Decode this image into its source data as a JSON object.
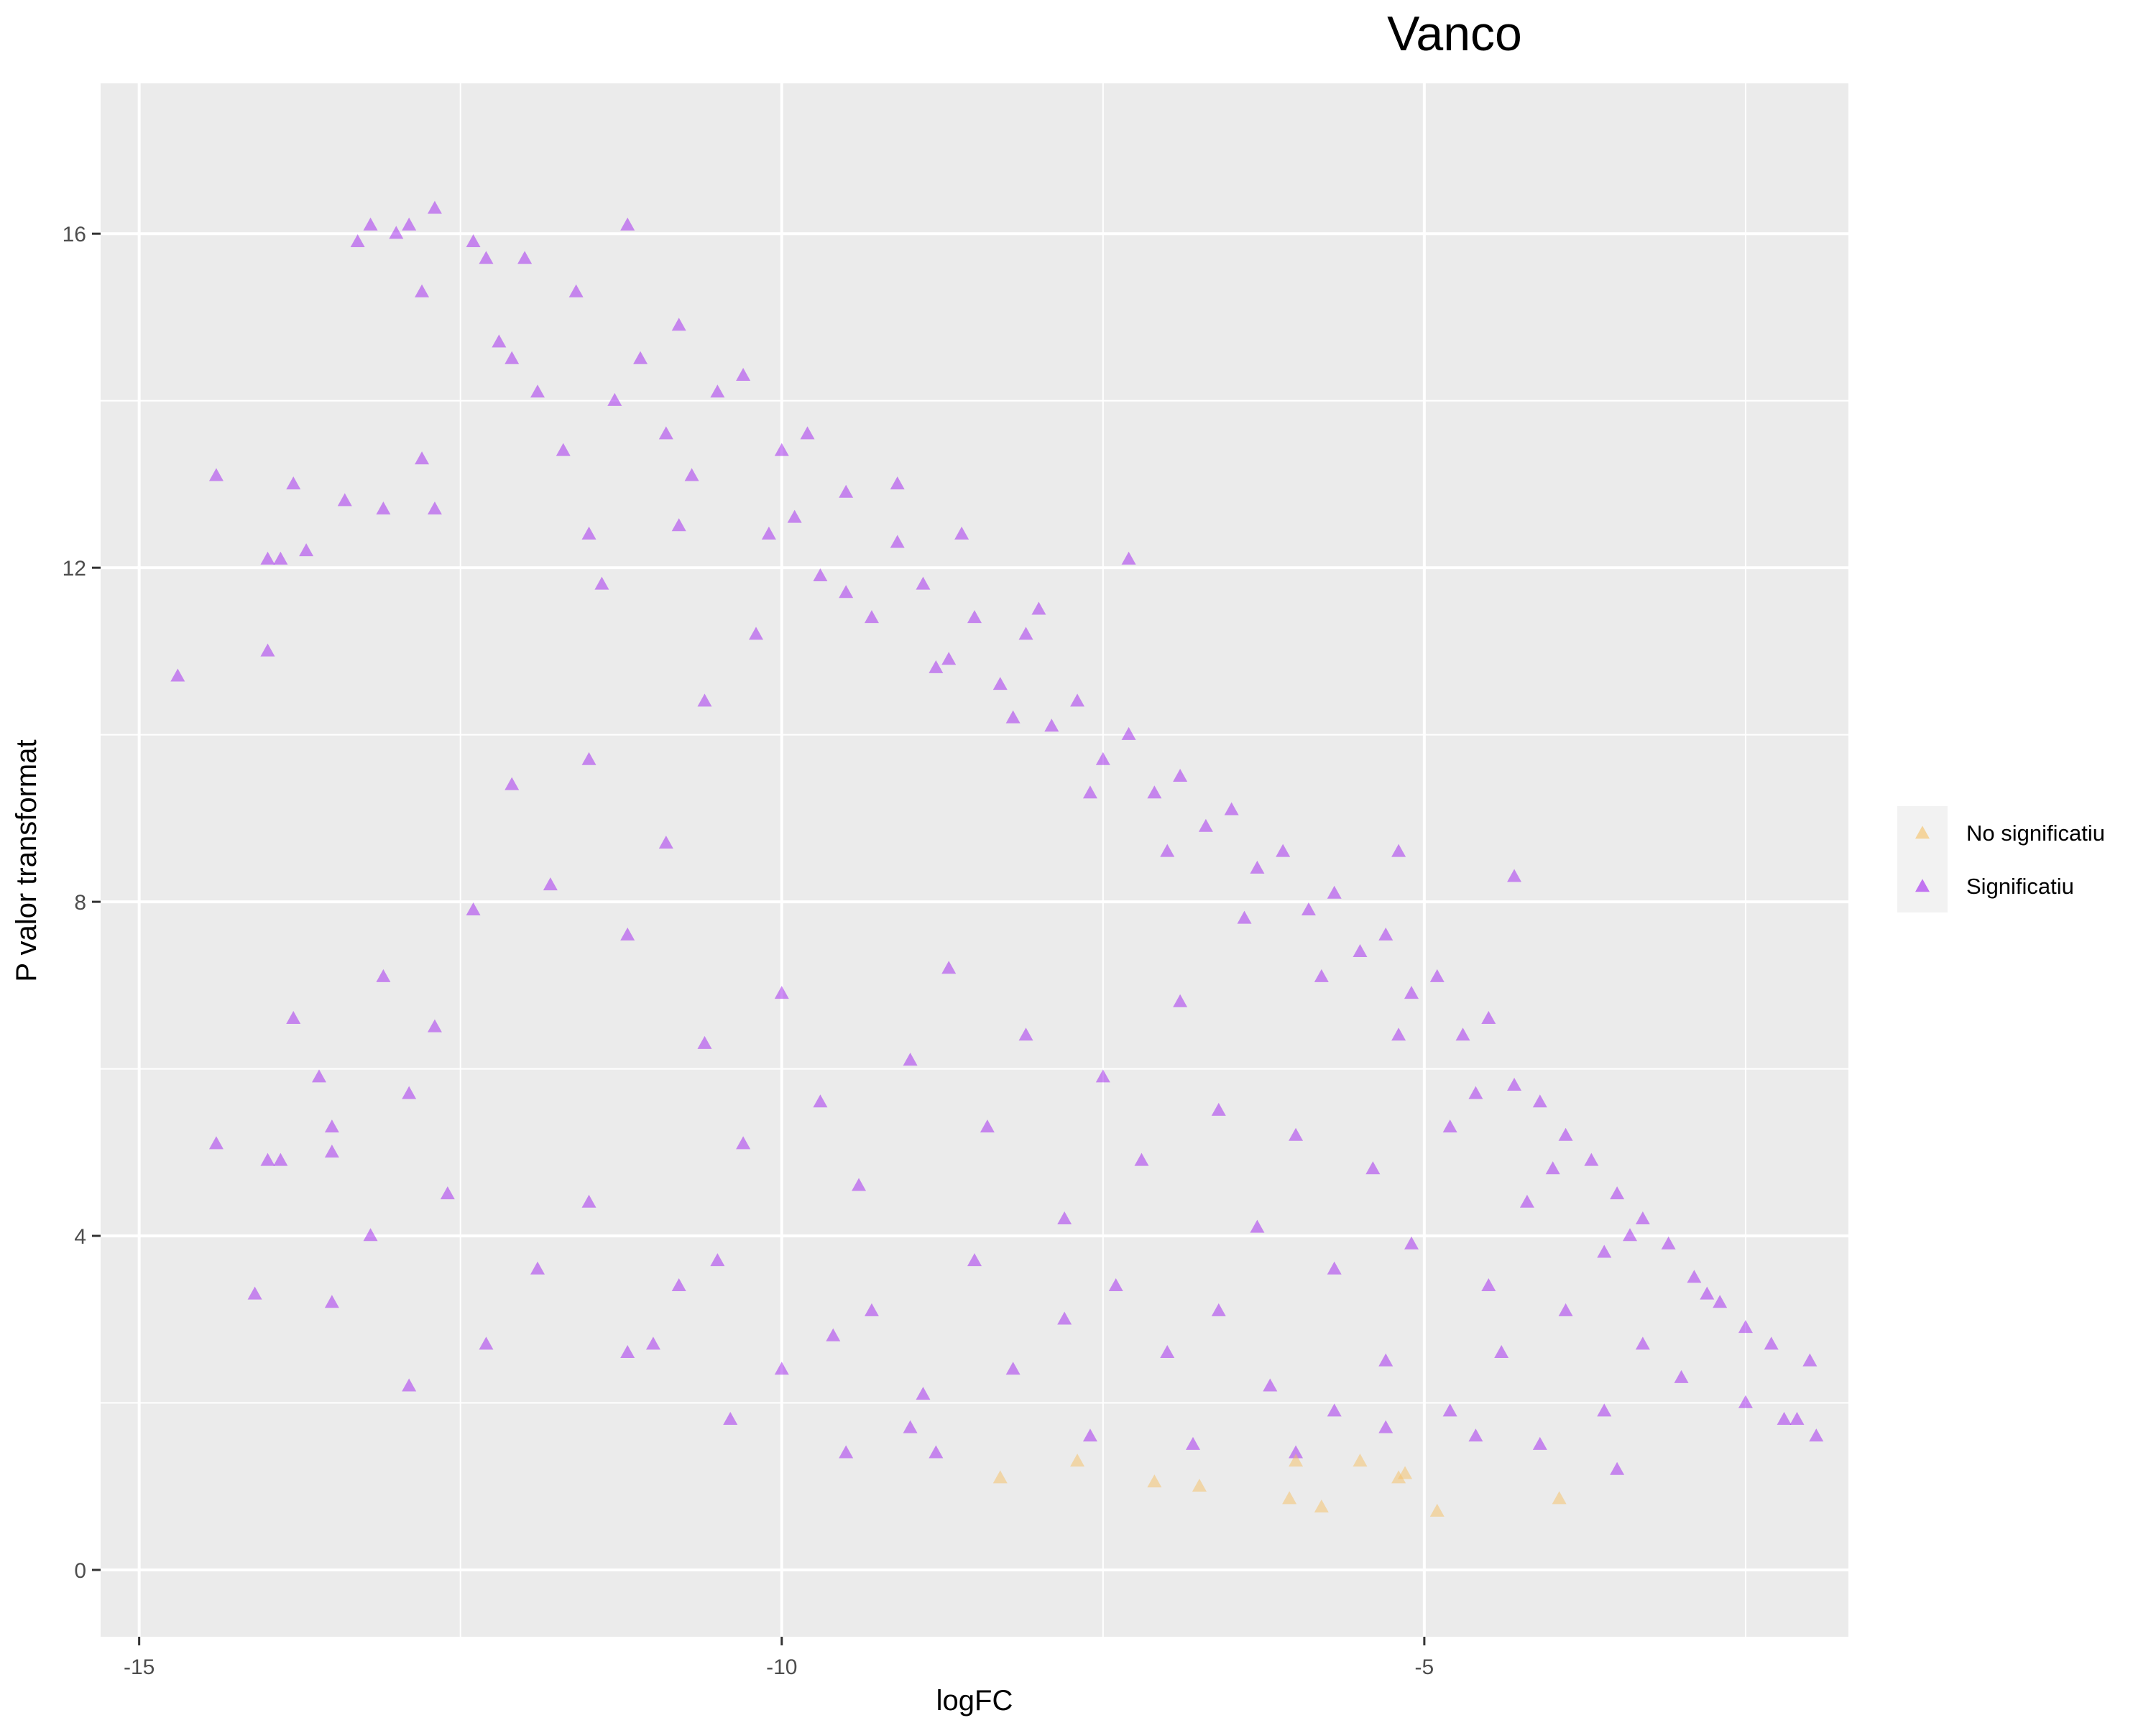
{
  "chart_data": {
    "type": "scatter",
    "title": "Vanco",
    "xlabel": "logFC",
    "ylabel": "P valor transformat",
    "xlim": [
      -15.3,
      -1.7
    ],
    "ylim": [
      -0.8,
      17.8
    ],
    "x_ticks": [
      -15,
      -10,
      -5
    ],
    "x_tick_labels": [
      "-15",
      "-10",
      "-5"
    ],
    "y_ticks": [
      0,
      4,
      8,
      12,
      16
    ],
    "y_tick_labels": [
      "0",
      "4",
      "8",
      "12",
      "16"
    ],
    "grid": true,
    "marker": "triangle",
    "legend": {
      "position": "right",
      "title": ""
    },
    "series": [
      {
        "name": "No significatiu",
        "color": "#F5C063",
        "points": [
          [
            -8.3,
            1.1
          ],
          [
            -7.7,
            1.3
          ],
          [
            -7.1,
            1.05
          ],
          [
            -6.75,
            1.0
          ],
          [
            -6.05,
            0.85
          ],
          [
            -6.0,
            1.3
          ],
          [
            -5.8,
            0.75
          ],
          [
            -5.5,
            1.3
          ],
          [
            -5.2,
            1.1
          ],
          [
            -5.15,
            1.15
          ],
          [
            -4.9,
            0.7
          ],
          [
            -3.95,
            0.85
          ]
        ]
      },
      {
        "name": "Significatiu",
        "color": "#A020F0",
        "points": [
          [
            -14.7,
            10.7
          ],
          [
            -14.4,
            13.1
          ],
          [
            -14.4,
            5.1
          ],
          [
            -14.1,
            3.3
          ],
          [
            -14.0,
            12.1
          ],
          [
            -14.0,
            11.0
          ],
          [
            -14.0,
            4.9
          ],
          [
            -13.9,
            12.1
          ],
          [
            -13.9,
            4.9
          ],
          [
            -13.8,
            13.0
          ],
          [
            -13.8,
            6.6
          ],
          [
            -13.7,
            12.2
          ],
          [
            -13.6,
            5.9
          ],
          [
            -13.5,
            3.2
          ],
          [
            -13.5,
            5.3
          ],
          [
            -13.5,
            5.0
          ],
          [
            -13.4,
            12.8
          ],
          [
            -13.3,
            15.9
          ],
          [
            -13.2,
            16.1
          ],
          [
            -13.1,
            12.7
          ],
          [
            -13.0,
            16.0
          ],
          [
            -12.9,
            16.1
          ],
          [
            -12.8,
            15.3
          ],
          [
            -12.8,
            13.3
          ],
          [
            -12.7,
            16.3
          ],
          [
            -12.7,
            12.7
          ],
          [
            -12.4,
            15.9
          ],
          [
            -12.3,
            15.7
          ],
          [
            -12.1,
            14.5
          ],
          [
            -12.0,
            15.7
          ],
          [
            -11.9,
            14.1
          ],
          [
            -11.7,
            13.4
          ],
          [
            -11.5,
            12.4
          ],
          [
            -11.4,
            11.8
          ],
          [
            -11.2,
            16.1
          ],
          [
            -11.1,
            14.5
          ],
          [
            -10.9,
            13.6
          ],
          [
            -10.8,
            12.5
          ],
          [
            -10.6,
            10.4
          ],
          [
            -10.5,
            14.1
          ],
          [
            -10.2,
            11.2
          ],
          [
            -10.0,
            13.4
          ],
          [
            -9.9,
            12.6
          ],
          [
            -9.7,
            11.9
          ],
          [
            -9.5,
            12.9
          ],
          [
            -9.3,
            11.4
          ],
          [
            -9.1,
            12.3
          ],
          [
            -8.9,
            11.8
          ],
          [
            -8.7,
            10.9
          ],
          [
            -8.5,
            11.4
          ],
          [
            -8.3,
            10.6
          ],
          [
            -8.1,
            11.2
          ],
          [
            -7.9,
            10.1
          ],
          [
            -7.7,
            10.4
          ],
          [
            -7.5,
            9.7
          ],
          [
            -7.3,
            10.0
          ],
          [
            -7.1,
            9.3
          ],
          [
            -6.9,
            9.5
          ],
          [
            -6.7,
            8.9
          ],
          [
            -6.5,
            9.1
          ],
          [
            -6.3,
            8.4
          ],
          [
            -6.1,
            8.6
          ],
          [
            -5.9,
            7.9
          ],
          [
            -5.7,
            8.1
          ],
          [
            -5.5,
            7.4
          ],
          [
            -5.3,
            7.6
          ],
          [
            -5.1,
            6.9
          ],
          [
            -4.9,
            7.1
          ],
          [
            -4.7,
            6.4
          ],
          [
            -4.5,
            6.6
          ],
          [
            -4.3,
            5.8
          ],
          [
            -4.1,
            5.6
          ],
          [
            -3.9,
            5.2
          ],
          [
            -3.7,
            4.9
          ],
          [
            -3.5,
            4.5
          ],
          [
            -3.3,
            4.2
          ],
          [
            -3.1,
            3.9
          ],
          [
            -2.9,
            3.5
          ],
          [
            -2.7,
            3.2
          ],
          [
            -2.5,
            2.9
          ],
          [
            -2.3,
            2.7
          ],
          [
            -2.1,
            1.8
          ],
          [
            -2.0,
            2.5
          ],
          [
            -1.95,
            1.6
          ],
          [
            -2.5,
            2.0
          ],
          [
            -3.0,
            2.3
          ],
          [
            -3.6,
            1.9
          ],
          [
            -4.1,
            1.5
          ],
          [
            -4.4,
            2.6
          ],
          [
            -4.8,
            1.9
          ],
          [
            -5.3,
            2.5
          ],
          [
            -5.7,
            1.9
          ],
          [
            -6.2,
            2.2
          ],
          [
            -6.6,
            3.1
          ],
          [
            -7.0,
            2.6
          ],
          [
            -7.4,
            3.4
          ],
          [
            -7.8,
            3.0
          ],
          [
            -8.2,
            2.4
          ],
          [
            -8.5,
            3.7
          ],
          [
            -8.9,
            2.1
          ],
          [
            -9.3,
            3.1
          ],
          [
            -9.6,
            2.8
          ],
          [
            -10.0,
            2.4
          ],
          [
            -10.4,
            1.8
          ],
          [
            -10.8,
            3.4
          ],
          [
            -11.2,
            2.6
          ],
          [
            -11.5,
            4.4
          ],
          [
            -11.9,
            3.6
          ],
          [
            -12.3,
            2.7
          ],
          [
            -12.6,
            4.5
          ],
          [
            -12.9,
            5.7
          ],
          [
            -13.1,
            7.1
          ],
          [
            -12.7,
            6.5
          ],
          [
            -12.4,
            7.9
          ],
          [
            -12.1,
            9.4
          ],
          [
            -11.8,
            8.2
          ],
          [
            -11.5,
            9.7
          ],
          [
            -11.2,
            7.6
          ],
          [
            -10.9,
            8.7
          ],
          [
            -10.6,
            6.3
          ],
          [
            -10.3,
            5.1
          ],
          [
            -10.0,
            6.9
          ],
          [
            -9.7,
            5.6
          ],
          [
            -9.4,
            4.6
          ],
          [
            -9.0,
            6.1
          ],
          [
            -8.7,
            7.2
          ],
          [
            -8.4,
            5.3
          ],
          [
            -8.1,
            6.4
          ],
          [
            -7.8,
            4.2
          ],
          [
            -7.5,
            5.9
          ],
          [
            -7.2,
            4.9
          ],
          [
            -6.9,
            6.8
          ],
          [
            -6.6,
            5.5
          ],
          [
            -6.3,
            4.1
          ],
          [
            -6.0,
            5.2
          ],
          [
            -5.7,
            3.6
          ],
          [
            -5.4,
            4.8
          ],
          [
            -5.1,
            3.9
          ],
          [
            -4.8,
            5.3
          ],
          [
            -4.5,
            3.4
          ],
          [
            -4.2,
            4.4
          ],
          [
            -3.9,
            3.1
          ],
          [
            -3.6,
            3.8
          ],
          [
            -3.3,
            2.7
          ],
          [
            -12.9,
            2.2
          ],
          [
            -13.2,
            4.0
          ],
          [
            -11.0,
            2.7
          ],
          [
            -10.5,
            3.7
          ],
          [
            -9.0,
            1.7
          ],
          [
            -9.5,
            1.4
          ],
          [
            -8.8,
            1.4
          ],
          [
            -7.6,
            1.6
          ],
          [
            -6.8,
            1.5
          ],
          [
            -6.0,
            1.4
          ],
          [
            -5.3,
            1.7
          ],
          [
            -4.6,
            1.6
          ],
          [
            -3.5,
            1.2
          ],
          [
            -2.2,
            1.8
          ],
          [
            -4.3,
            8.3
          ],
          [
            -5.2,
            8.6
          ],
          [
            -7.3,
            12.1
          ],
          [
            -8.0,
            11.5
          ],
          [
            -8.6,
            12.4
          ],
          [
            -9.1,
            13.0
          ],
          [
            -9.8,
            13.6
          ],
          [
            -10.3,
            14.3
          ],
          [
            -10.8,
            14.9
          ],
          [
            -11.6,
            15.3
          ],
          [
            -12.2,
            14.7
          ],
          [
            -11.3,
            14.0
          ],
          [
            -10.7,
            13.1
          ],
          [
            -10.1,
            12.4
          ],
          [
            -9.5,
            11.7
          ],
          [
            -8.8,
            10.8
          ],
          [
            -8.2,
            10.2
          ],
          [
            -7.6,
            9.3
          ],
          [
            -7.0,
            8.6
          ],
          [
            -6.4,
            7.8
          ],
          [
            -5.8,
            7.1
          ],
          [
            -5.2,
            6.4
          ],
          [
            -4.6,
            5.7
          ],
          [
            -4.0,
            4.8
          ],
          [
            -3.4,
            4.0
          ],
          [
            -2.8,
            3.3
          ]
        ]
      }
    ]
  }
}
